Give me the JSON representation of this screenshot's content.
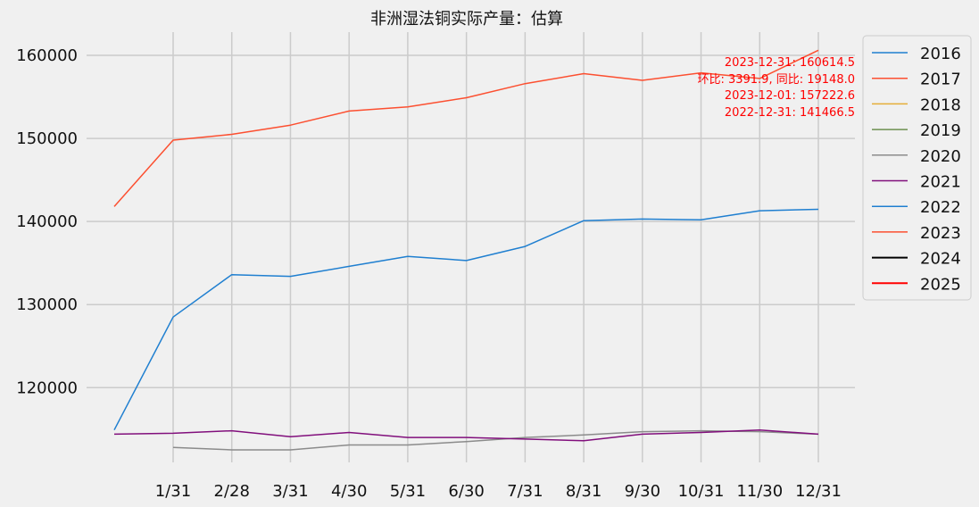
{
  "chart_data": {
    "type": "line",
    "title": "非洲湿法铜实际产量：估算",
    "xlabel": "",
    "ylabel": "",
    "categories": [
      "1/31",
      "2/28",
      "3/31",
      "4/30",
      "5/31",
      "6/30",
      "7/31",
      "8/31",
      "9/30",
      "10/31",
      "11/30",
      "12/31"
    ],
    "ylim": [
      111000,
      162800
    ],
    "yticks": [
      120000,
      130000,
      140000,
      150000,
      160000
    ],
    "grid": true,
    "legend_position": "right",
    "series": [
      {
        "name": "2016",
        "color": "#1f7fd0",
        "points": []
      },
      {
        "name": "2017",
        "color": "#fc4f30",
        "points": []
      },
      {
        "name": "2018",
        "color": "#e5ae38",
        "points": []
      },
      {
        "name": "2019",
        "color": "#6d904f",
        "points": []
      },
      {
        "name": "2020",
        "color": "#8b8b8b",
        "points": [
          {
            "x": "1/31",
            "y": 112800
          },
          {
            "x": "2/28",
            "y": 112500
          },
          {
            "x": "3/31",
            "y": 112500
          },
          {
            "x": "4/30",
            "y": 113100
          },
          {
            "x": "5/31",
            "y": 113100
          },
          {
            "x": "6/30",
            "y": 113500
          },
          {
            "x": "7/31",
            "y": 114000
          },
          {
            "x": "8/31",
            "y": 114300
          },
          {
            "x": "9/30",
            "y": 114700
          },
          {
            "x": "10/31",
            "y": 114800
          },
          {
            "x": "11/30",
            "y": 114700
          },
          {
            "x": "12/31",
            "y": 114400
          }
        ]
      },
      {
        "name": "2021",
        "color": "#810f7c",
        "points": [
          {
            "x": "start",
            "y": 114400
          },
          {
            "x": "1/31",
            "y": 114500
          },
          {
            "x": "2/28",
            "y": 114800
          },
          {
            "x": "3/31",
            "y": 114100
          },
          {
            "x": "4/30",
            "y": 114600
          },
          {
            "x": "5/31",
            "y": 114000
          },
          {
            "x": "6/30",
            "y": 114000
          },
          {
            "x": "7/31",
            "y": 113800
          },
          {
            "x": "8/31",
            "y": 113600
          },
          {
            "x": "9/30",
            "y": 114400
          },
          {
            "x": "10/31",
            "y": 114600
          },
          {
            "x": "11/30",
            "y": 114900
          },
          {
            "x": "12/31",
            "y": 114400
          }
        ]
      },
      {
        "name": "2022",
        "color": "#1f7fd0",
        "points": [
          {
            "x": "start",
            "y": 114900
          },
          {
            "x": "1/31",
            "y": 128500
          },
          {
            "x": "2/28",
            "y": 133600
          },
          {
            "x": "3/31",
            "y": 133400
          },
          {
            "x": "4/30",
            "y": 134600
          },
          {
            "x": "5/31",
            "y": 135800
          },
          {
            "x": "6/30",
            "y": 135300
          },
          {
            "x": "7/31",
            "y": 137000
          },
          {
            "x": "8/31",
            "y": 140100
          },
          {
            "x": "9/30",
            "y": 140300
          },
          {
            "x": "10/31",
            "y": 140200
          },
          {
            "x": "11/30",
            "y": 141300
          },
          {
            "x": "12/31",
            "y": 141466.5
          }
        ]
      },
      {
        "name": "2023",
        "color": "#fc4f30",
        "points": [
          {
            "x": "start",
            "y": 141800
          },
          {
            "x": "1/31",
            "y": 149800
          },
          {
            "x": "2/28",
            "y": 150500
          },
          {
            "x": "3/31",
            "y": 151600
          },
          {
            "x": "4/30",
            "y": 153300
          },
          {
            "x": "5/31",
            "y": 153800
          },
          {
            "x": "6/30",
            "y": 154900
          },
          {
            "x": "7/31",
            "y": 156600
          },
          {
            "x": "8/31",
            "y": 157800
          },
          {
            "x": "9/30",
            "y": 157000
          },
          {
            "x": "10/31",
            "y": 157900
          },
          {
            "x": "11/30",
            "y": 157222.6
          },
          {
            "x": "12/31",
            "y": 160614.5
          }
        ]
      },
      {
        "name": "2024",
        "color": "#000000",
        "points": []
      },
      {
        "name": "2025",
        "color": "#ff0000",
        "points": []
      }
    ],
    "annotations": [
      "2023-12-31: 160614.5",
      "环比: 3391.9, 同比: 19148.0",
      "2023-12-01: 157222.6",
      "2022-12-31: 141466.5"
    ]
  }
}
